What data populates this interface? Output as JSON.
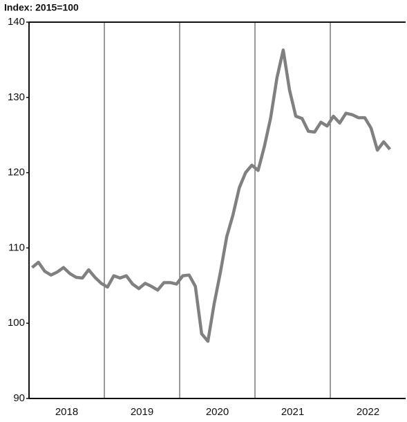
{
  "chart_data": {
    "type": "line",
    "title": "Index: 2015=100",
    "categories": [
      null,
      null,
      null,
      null,
      null,
      null,
      "2018",
      null,
      null,
      null,
      null,
      null,
      null,
      null,
      null,
      null,
      null,
      null,
      "2019",
      null,
      null,
      null,
      null,
      null,
      null,
      null,
      null,
      null,
      null,
      null,
      "2020",
      null,
      null,
      null,
      null,
      null,
      null,
      null,
      null,
      null,
      null,
      null,
      "2021",
      null,
      null,
      null,
      null,
      null,
      null,
      null,
      null,
      null,
      null,
      null,
      "2022",
      null,
      null,
      null,
      null,
      null
    ],
    "series": [
      {
        "color": "#808080",
        "values": [
          107.4,
          108.1,
          106.9,
          106.4,
          106.8,
          107.4,
          106.6,
          106.1,
          106.0,
          107.1,
          106.1,
          105.3,
          104.8,
          106.3,
          106.0,
          106.3,
          105.2,
          104.6,
          105.3,
          104.9,
          104.4,
          105.4,
          105.4,
          105.2,
          106.3,
          106.4,
          104.9,
          98.6,
          97.6,
          102.6,
          106.8,
          111.5,
          114.4,
          118.0,
          120.0,
          121.0,
          120.3,
          123.5,
          127.3,
          132.6,
          136.3,
          131.0,
          127.5,
          127.2,
          125.5,
          125.4,
          126.7,
          126.2,
          127.5,
          126.6,
          127.9,
          127.7,
          127.3,
          127.3,
          125.9,
          123.0,
          124.1,
          123.1,
          null,
          null
        ]
      }
    ],
    "ylim": [
      90,
      140
    ],
    "yticks": [
      90,
      100,
      110,
      120,
      130,
      140
    ],
    "grid": false
  }
}
